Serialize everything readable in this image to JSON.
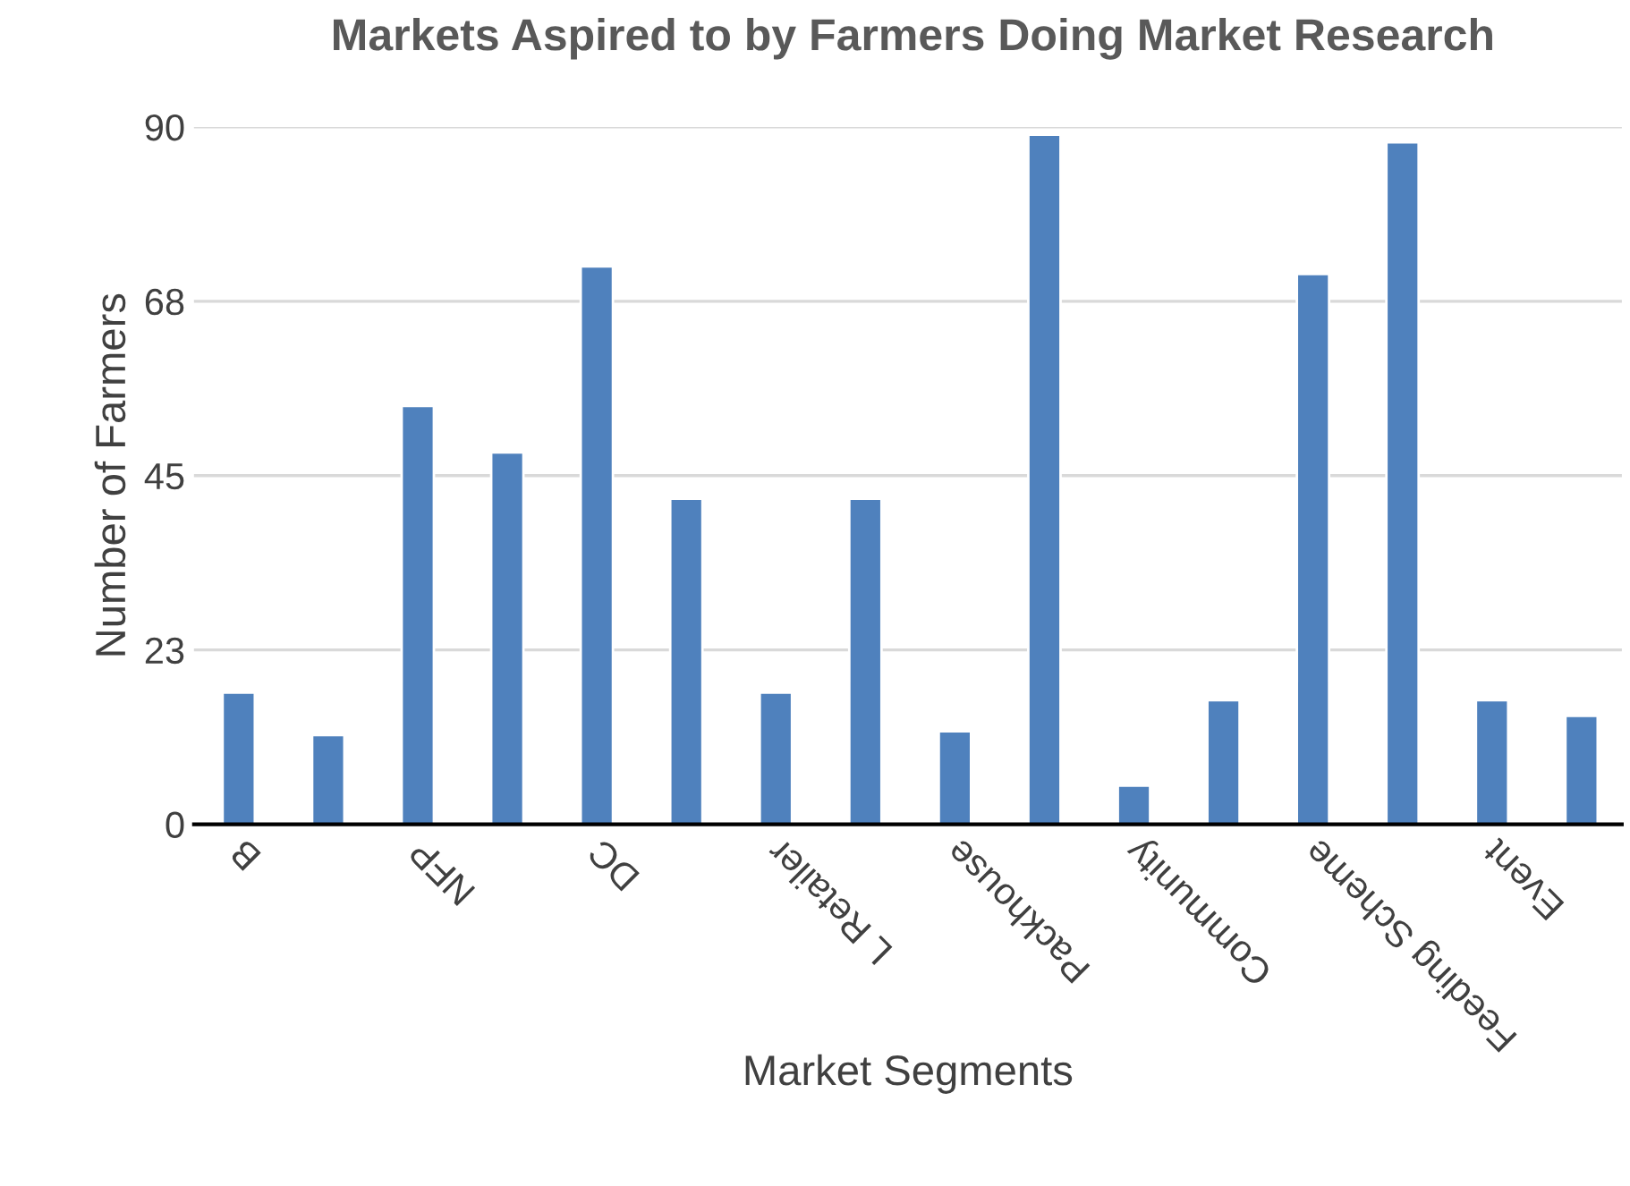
{
  "chart_data": {
    "type": "bar",
    "title": "Markets Aspired to by Farmers Doing Market Research",
    "xlabel": "Market Segments",
    "ylabel": "Number of Farmers",
    "categories": [
      "B",
      null,
      "NFP",
      null,
      "DC",
      null,
      "L Retailer",
      null,
      "Packhouse",
      null,
      "Community",
      null,
      "Feeding Scheme",
      null,
      "Event",
      null
    ],
    "values": [
      17,
      11.5,
      54,
      48,
      72,
      42,
      17,
      42,
      12,
      89,
      5,
      16,
      71,
      88,
      16,
      14
    ],
    "color": "#4f81bd",
    "ylim": [
      0,
      90
    ],
    "yticks": [
      0,
      {
        "value": 22.5,
        "label": "23"
      },
      45,
      {
        "value": 67.5,
        "label": "68"
      },
      90
    ],
    "grid": "y",
    "legend": false
  }
}
